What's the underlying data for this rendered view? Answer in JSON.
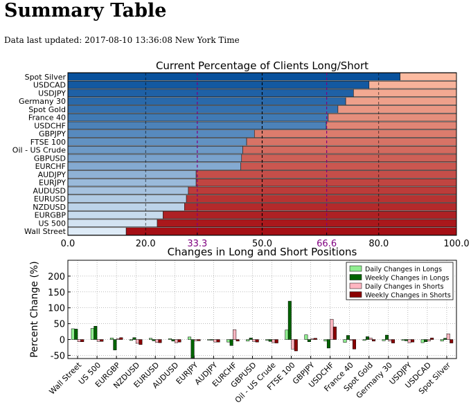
{
  "page": {
    "title": "Summary Table",
    "updated_label": "Data last updated:",
    "updated_value": "2017-08-10 13:36:08 New York Time"
  },
  "chart_data": [
    {
      "type": "bar",
      "orientation": "horizontal-stacked",
      "title": "Current Percentage of Clients Long/Short",
      "categories": [
        "Spot Silver",
        "USDCAD",
        "USDJPY",
        "Germany 30",
        "Spot Gold",
        "France 40",
        "USDCHF",
        "GBPJPY",
        "FTSE 100",
        "Oil - US Crude",
        "GBPUSD",
        "EURCHF",
        "AUDJPY",
        "EURJPY",
        "AUDUSD",
        "EURUSD",
        "NZDUSD",
        "EURGBP",
        "US 500",
        "Wall Street"
      ],
      "long_values": [
        85.5,
        77.5,
        73.5,
        71.5,
        69.5,
        67,
        66.5,
        48,
        46,
        45,
        44.7,
        44.5,
        33,
        33,
        31,
        30.5,
        30,
        24.5,
        23,
        15
      ],
      "xlim": [
        0,
        100
      ],
      "xticks": [
        "0.0",
        "20.0",
        "33.3",
        "50.0",
        "66.6",
        "80.0",
        "100.0"
      ],
      "reference_lines": [
        33.3,
        50,
        66.6
      ],
      "grid": true
    },
    {
      "type": "bar",
      "title": "Changes in Long and Short Positions",
      "ylabel": "Percent Change (%)",
      "ylim": [
        -60,
        250
      ],
      "yticks": [
        -50,
        0,
        50,
        100,
        150,
        200
      ],
      "categories": [
        "Wall Street",
        "US 500",
        "EURGBP",
        "NZDUSD",
        "EURUSD",
        "AUDUSD",
        "EURJPY",
        "AUDJPY",
        "EURCHF",
        "GBPUSD",
        "Oil - US Crude",
        "FTSE 100",
        "GBPJPY",
        "USDCHF",
        "France 40",
        "Spot Gold",
        "Germany 30",
        "USDJPY",
        "USDCAD",
        "Spot Silver"
      ],
      "legend_placement": "upper-right",
      "grid": true,
      "series": [
        {
          "name": "Daily Changes in Longs",
          "color": "#90ee90",
          "values": [
            34,
            35,
            5,
            -3,
            4,
            3,
            8,
            -2,
            -8,
            -5,
            -3,
            30,
            15,
            -5,
            -9,
            -3,
            -4,
            -3,
            -10,
            -5
          ]
        },
        {
          "name": "Weekly Changes in Longs",
          "color": "#006400",
          "values": [
            33,
            42,
            -33,
            6,
            -4,
            -5,
            -58,
            -2,
            -19,
            5,
            -6,
            121,
            -7,
            -27,
            13,
            9,
            14,
            -4,
            -7,
            4
          ]
        },
        {
          "name": "Daily Changes in Shorts",
          "color": "#ffb6c1",
          "values": [
            -7,
            -6,
            3,
            -12,
            -9,
            -10,
            -4,
            -8,
            31,
            -6,
            -10,
            -30,
            3,
            64,
            -3,
            5,
            -5,
            -10,
            -5,
            18
          ]
        },
        {
          "name": "Weekly Changes in Shorts",
          "color": "#8b0000",
          "values": [
            -7,
            -6,
            6,
            -16,
            -10,
            -8,
            -4,
            -8,
            -5,
            -8,
            -11,
            -36,
            4,
            40,
            -30,
            -5,
            -11,
            -8,
            5,
            -11
          ]
        }
      ]
    }
  ]
}
